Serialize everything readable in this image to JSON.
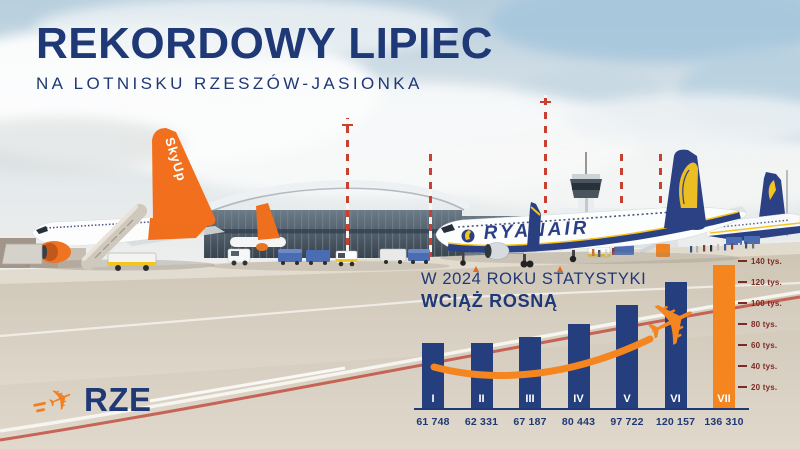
{
  "header": {
    "title": "REKORDOWY LIPIEC",
    "subtitle": "NA LOTNISKU RZESZÓW-JASIONKA"
  },
  "logo": {
    "text": "RZE",
    "icon": "plane-icon"
  },
  "chart": {
    "title_line1": "W 2024 ROKU STATYSTYKI",
    "title_line2": "WCIĄŻ ROSNĄ"
  },
  "chart_data": {
    "type": "bar",
    "title": "W 2024 ROKU STATYSTYKI WCIĄŻ ROSNĄ",
    "categories": [
      "I",
      "II",
      "III",
      "IV",
      "V",
      "VI",
      "VII"
    ],
    "values": [
      61748,
      62331,
      67187,
      80443,
      97722,
      120157,
      136310
    ],
    "value_labels": [
      "61 748",
      "62 331",
      "67 187",
      "80 443",
      "97 722",
      "120 157",
      "136 310"
    ],
    "ylim": [
      0,
      145000
    ],
    "y_ticks": [
      {
        "value": 20000,
        "label": "20 tys."
      },
      {
        "value": 40000,
        "label": "40 tys."
      },
      {
        "value": 60000,
        "label": "60 tys."
      },
      {
        "value": 80000,
        "label": "80 tys."
      },
      {
        "value": 100000,
        "label": "100 tys."
      },
      {
        "value": 120000,
        "label": "120 tys."
      },
      {
        "value": 140000,
        "label": "140 tys."
      }
    ],
    "highlight_index": 6,
    "grid": false,
    "legend_position": "none",
    "bar_color": "#253F7E",
    "highlight_color": "#F5861F",
    "tick_color": "#7C2B24"
  },
  "scene": {
    "ryanair_titles": "RYANAIR",
    "skyup_tail_text": "SkyUp"
  },
  "colors": {
    "navy": "#1F3876",
    "orange": "#F5861F",
    "tick_red": "#7C2B24"
  }
}
